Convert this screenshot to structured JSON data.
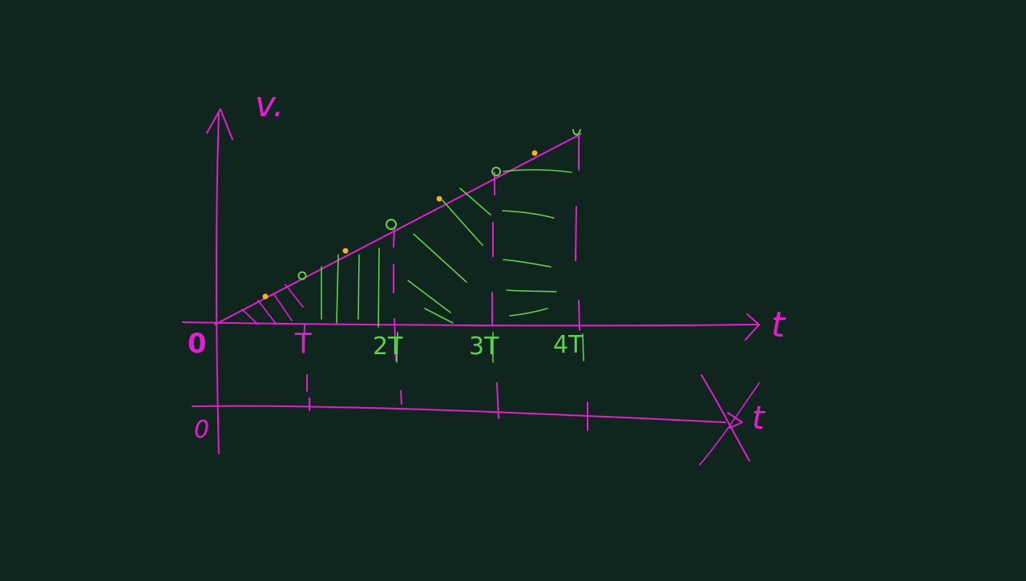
{
  "board": {
    "background": "#11251f",
    "ink_pink": "#e21fd0",
    "ink_green": "#5fd14a",
    "ink_yellow": "#f2b321"
  },
  "labels": {
    "v_axis": "v.",
    "t_axis_top": "t",
    "t_axis_bottom": "t",
    "origin_top": "0",
    "origin_bottom": "0",
    "tick_T": "T",
    "tick_2T": "2T",
    "tick_3T": "3T",
    "tick_4T": "4T"
  },
  "icons": {
    "marker_dot": "dot-marker",
    "arrow": "arrowhead"
  }
}
